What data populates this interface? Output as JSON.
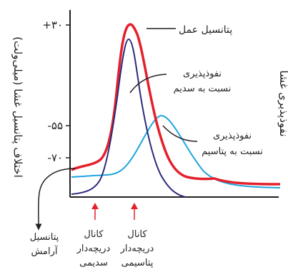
{
  "diagram": {
    "y_axis_label": "اختلاف پتانسیل غشا (میلی‌ولت)",
    "right_axis_label": "نفوذپذیری غشا",
    "ticks": [
      {
        "label": "+۳۰"
      },
      {
        "label": "-۵۵"
      },
      {
        "label": "-۷۰"
      }
    ],
    "labels": {
      "action_potential": "پتانسیل عمل",
      "na_line1": "نفوذپذیری",
      "na_line2": "نسبت به سدیم",
      "k_line1": "نفوذپذیری",
      "k_line2": "نسبت به پتاسیم",
      "resting_line1": "پتانسیل",
      "resting_line2": "آرامش",
      "na_channel_line1": "کانال",
      "na_channel_line2": "دریچه‌دار",
      "na_channel_line3": "سدیمی",
      "k_channel_line1": "کانال",
      "k_channel_line2": "دریچه‌دار",
      "k_channel_line3": "پتاسیمی"
    },
    "colors": {
      "action_potential": "#e4202c",
      "sodium": "#2b2a7c",
      "potassium": "#1fa5dc",
      "axis": "#231f20",
      "arrow": "#e4202c"
    }
  }
}
